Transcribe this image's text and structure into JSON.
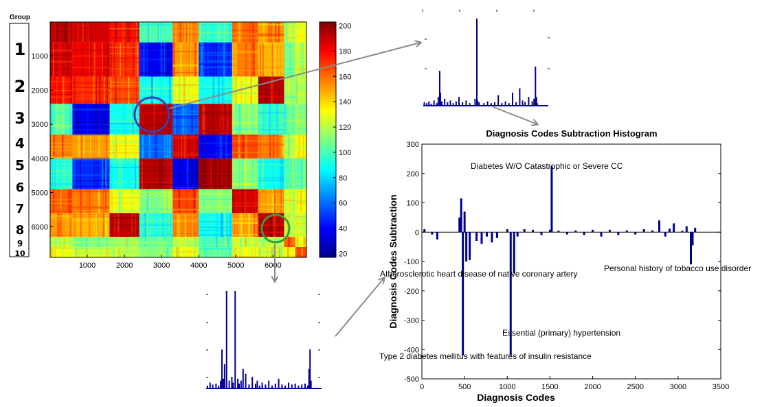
{
  "group_panel": {
    "title": "Group",
    "groups": [
      "1",
      "2",
      "3",
      "4",
      "5",
      "6",
      "7",
      "8",
      "9",
      "10"
    ]
  },
  "heatmap": {
    "x_ticks": [
      "1000",
      "2000",
      "3000",
      "4000",
      "5000",
      "6000"
    ],
    "y_ticks": [
      "1000",
      "2000",
      "3000",
      "4000",
      "5000",
      "6000"
    ],
    "colorbar_ticks": [
      "200",
      "180",
      "160",
      "140",
      "120",
      "100",
      "80",
      "60",
      "40",
      "20"
    ]
  },
  "colors": {
    "highlight_blue": "#3a3fb5",
    "highlight_green": "#3a9a3a",
    "arrow": "#8a8a8a",
    "bar": "#00008b"
  },
  "chart_data": [
    {
      "type": "heatmap",
      "title": "",
      "xlabel": "",
      "ylabel": "",
      "x_range": [
        0,
        6900
      ],
      "y_range": [
        0,
        6900
      ],
      "color_range": [
        20,
        200
      ],
      "group_boundaries": [
        0,
        600,
        1600,
        2400,
        3300,
        4000,
        4900,
        5600,
        6300,
        6600,
        6900
      ],
      "block_levels": [
        [
          190,
          185,
          175,
          100,
          155,
          95,
          160,
          150,
          120,
          130
        ],
        [
          185,
          180,
          170,
          40,
          150,
          50,
          155,
          145,
          110,
          125
        ],
        [
          175,
          170,
          165,
          90,
          130,
          90,
          130,
          190,
          115,
          120
        ],
        [
          100,
          40,
          90,
          190,
          60,
          190,
          110,
          95,
          105,
          110
        ],
        [
          155,
          150,
          130,
          60,
          185,
          40,
          165,
          155,
          120,
          130
        ],
        [
          95,
          50,
          90,
          190,
          40,
          195,
          110,
          90,
          100,
          105
        ],
        [
          160,
          155,
          130,
          110,
          165,
          110,
          185,
          150,
          125,
          130
        ],
        [
          150,
          145,
          190,
          95,
          155,
          90,
          150,
          190,
          120,
          125
        ],
        [
          120,
          110,
          115,
          105,
          120,
          100,
          125,
          120,
          160,
          130
        ],
        [
          130,
          125,
          120,
          110,
          130,
          105,
          130,
          125,
          130,
          165
        ]
      ]
    },
    {
      "type": "bar",
      "title": "Diagnosis Codes Subtraction Histogram",
      "xlabel": "Diagnosis Codes",
      "ylabel": "Diagnosis Codes Subtraction",
      "xlim": [
        0,
        3500
      ],
      "ylim": [
        -500,
        300
      ],
      "x_ticks": [
        0,
        500,
        1000,
        1500,
        2000,
        2500,
        3000,
        3500
      ],
      "y_ticks": [
        300,
        200,
        100,
        0,
        -100,
        -200,
        -300,
        -400,
        -500
      ],
      "x": [
        30,
        120,
        180,
        440,
        460,
        480,
        500,
        520,
        560,
        640,
        700,
        760,
        820,
        880,
        1000,
        1040,
        1080,
        1120,
        1200,
        1300,
        1400,
        1500,
        1520,
        1600,
        1700,
        1800,
        1900,
        2000,
        2100,
        2200,
        2300,
        2400,
        2500,
        2600,
        2700,
        2780,
        2850,
        2900,
        2950,
        3050,
        3100,
        3150,
        3170,
        3200
      ],
      "values": [
        10,
        -8,
        -25,
        50,
        115,
        -420,
        70,
        -100,
        -95,
        -30,
        -40,
        -15,
        -35,
        -20,
        10,
        -420,
        -140,
        -15,
        10,
        8,
        -10,
        8,
        225,
        5,
        -8,
        6,
        -10,
        8,
        -15,
        8,
        -10,
        6,
        -8,
        10,
        6,
        40,
        -15,
        12,
        30,
        5,
        20,
        -110,
        -45,
        15
      ],
      "annotations": [
        "Diabetes W/O Catastrophic or Severe CC",
        "Atherosclerotic heart disease  of native coronary artery",
        "Personal history of tobacco use disorder",
        "Essential (primary) hypertension",
        "Type 2 diabetes mellitus with features of insulin resistance"
      ]
    },
    {
      "type": "bar",
      "title": "",
      "xlabel": "",
      "ylabel": "",
      "xlim": [
        0,
        3500
      ],
      "ylim": [
        0,
        100
      ],
      "x": [
        30,
        100,
        160,
        220,
        300,
        380,
        420,
        460,
        480,
        520,
        600,
        680,
        760,
        840,
        920,
        1000,
        1100,
        1200,
        1300,
        1450,
        1500,
        1520,
        1560,
        1700,
        1800,
        1900,
        2000,
        2100,
        2200,
        2300,
        2400,
        2500,
        2600,
        2700,
        2780,
        2850,
        2950,
        3050,
        3100,
        3140,
        3170,
        3190
      ],
      "values": [
        4,
        3,
        5,
        2,
        6,
        3,
        10,
        40,
        15,
        5,
        8,
        4,
        6,
        3,
        5,
        10,
        4,
        6,
        3,
        8,
        100,
        6,
        4,
        3,
        5,
        3,
        4,
        12,
        3,
        5,
        3,
        15,
        4,
        20,
        6,
        4,
        10,
        5,
        8,
        45,
        10,
        3
      ]
    },
    {
      "type": "bar",
      "title": "",
      "xlabel": "",
      "ylabel": "",
      "xlim": [
        0,
        3500
      ],
      "ylim": [
        0,
        100
      ],
      "x": [
        40,
        120,
        200,
        300,
        380,
        440,
        480,
        520,
        560,
        620,
        700,
        780,
        820,
        880,
        960,
        1000,
        1060,
        1120,
        1200,
        1300,
        1400,
        1500,
        1550,
        1620,
        1700,
        1800,
        1900,
        2000,
        2100,
        2200,
        2300,
        2400,
        2500,
        2600,
        2700,
        2800,
        2900,
        3000,
        3080,
        3120,
        3150,
        3180
      ],
      "values": [
        3,
        6,
        4,
        5,
        3,
        8,
        40,
        10,
        25,
        100,
        8,
        12,
        6,
        100,
        10,
        5,
        8,
        20,
        15,
        4,
        12,
        5,
        8,
        3,
        6,
        4,
        8,
        3,
        5,
        10,
        4,
        3,
        6,
        4,
        5,
        3,
        4,
        5,
        3,
        20,
        40,
        8
      ]
    }
  ]
}
